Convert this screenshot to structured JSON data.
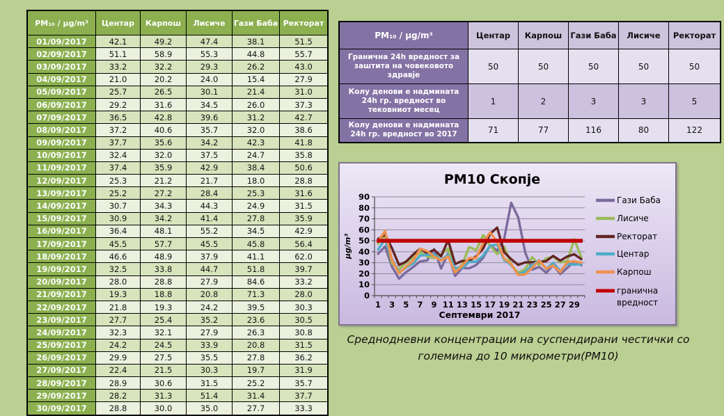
{
  "colors": {
    "page_bg": "#BACF92",
    "table_green": "#8CB050",
    "row_dark": "#D7E4BC",
    "row_light": "#EBF1DE",
    "purple_dark": "#8373A5",
    "purple_mid": "#CCC1DE",
    "purple_light": "#E5E0EF"
  },
  "left_table": {
    "corner_label": "PM₁₀ / µg/m³",
    "columns": [
      "Центар",
      "Карпош",
      "Лисиче",
      "Гази Баба",
      "Ректорат"
    ],
    "rows": [
      {
        "date": "01/09/2017",
        "values": [
          "42.1",
          "49.2",
          "47.4",
          "38.1",
          "51.5"
        ]
      },
      {
        "date": "02/09/2017",
        "values": [
          "51.1",
          "58.9",
          "55.3",
          "44.8",
          "55.7"
        ]
      },
      {
        "date": "03/09/2017",
        "values": [
          "33.2",
          "32.2",
          "29.3",
          "26.2",
          "43.0"
        ]
      },
      {
        "date": "04/09/2017",
        "values": [
          "21.0",
          "20.2",
          "24.0",
          "15.4",
          "27.9"
        ]
      },
      {
        "date": "05/09/2017",
        "values": [
          "25.7",
          "26.5",
          "30.1",
          "21.4",
          "31.0"
        ]
      },
      {
        "date": "06/09/2017",
        "values": [
          "29.2",
          "31.6",
          "34.5",
          "26.0",
          "37.3"
        ]
      },
      {
        "date": "07/09/2017",
        "values": [
          "36.5",
          "42.8",
          "39.6",
          "31.2",
          "42.7"
        ]
      },
      {
        "date": "08/09/2017",
        "values": [
          "37.2",
          "40.6",
          "35.7",
          "32.0",
          "38.6"
        ]
      },
      {
        "date": "09/09/2017",
        "values": [
          "37.7",
          "35.6",
          "34.2",
          "42.3",
          "41.8"
        ]
      },
      {
        "date": "10/09/2017",
        "values": [
          "32.4",
          "32.0",
          "37.5",
          "24.7",
          "35.8"
        ]
      },
      {
        "date": "11/09/2017",
        "values": [
          "37.4",
          "35.9",
          "42.9",
          "38.4",
          "50.6"
        ]
      },
      {
        "date": "12/09/2017",
        "values": [
          "25.3",
          "21.2",
          "21.7",
          "18.0",
          "28.8"
        ]
      },
      {
        "date": "13/09/2017",
        "values": [
          "25.2",
          "27.2",
          "28.4",
          "25.3",
          "31.6"
        ]
      },
      {
        "date": "14/09/2017",
        "values": [
          "30.7",
          "34.3",
          "44.3",
          "24.9",
          "31.5"
        ]
      },
      {
        "date": "15/09/2017",
        "values": [
          "30.9",
          "34.2",
          "41.4",
          "27.8",
          "35.9"
        ]
      },
      {
        "date": "16/09/2017",
        "values": [
          "36.4",
          "48.1",
          "55.2",
          "34.5",
          "42.9"
        ]
      },
      {
        "date": "17/09/2017",
        "values": [
          "45.5",
          "57.7",
          "45.5",
          "45.8",
          "56.4"
        ]
      },
      {
        "date": "18/09/2017",
        "values": [
          "46.6",
          "48.9",
          "37.9",
          "41.1",
          "62.0"
        ]
      },
      {
        "date": "19/09/2017",
        "values": [
          "32.5",
          "33.8",
          "44.7",
          "51.8",
          "39.7"
        ]
      },
      {
        "date": "20/09/2017",
        "values": [
          "28.0",
          "28.8",
          "27.9",
          "84.6",
          "33.2"
        ]
      },
      {
        "date": "21/09/2017",
        "values": [
          "19.3",
          "18.8",
          "20.8",
          "71.3",
          "28.0"
        ]
      },
      {
        "date": "22/09/2017",
        "values": [
          "21.8",
          "19.3",
          "24.2",
          "39.5",
          "30.3"
        ]
      },
      {
        "date": "23/09/2017",
        "values": [
          "27.7",
          "25.4",
          "35.2",
          "23.6",
          "30.5"
        ]
      },
      {
        "date": "24/09/2017",
        "values": [
          "32.3",
          "32.1",
          "27.9",
          "26.3",
          "30.8"
        ]
      },
      {
        "date": "25/09/2017",
        "values": [
          "24.2",
          "24.5",
          "33.9",
          "20.8",
          "31.5"
        ]
      },
      {
        "date": "26/09/2017",
        "values": [
          "29.9",
          "27.5",
          "35.5",
          "27.8",
          "36.2"
        ]
      },
      {
        "date": "27/09/2017",
        "values": [
          "22.4",
          "21.5",
          "30.3",
          "19.7",
          "31.9"
        ]
      },
      {
        "date": "28/09/2017",
        "values": [
          "28.9",
          "30.6",
          "31.5",
          "25.2",
          "35.7"
        ]
      },
      {
        "date": "29/09/2017",
        "values": [
          "28.2",
          "31.3",
          "51.4",
          "31.4",
          "37.7"
        ]
      },
      {
        "date": "30/09/2017",
        "values": [
          "28.8",
          "30.0",
          "35.0",
          "27.7",
          "33.3"
        ]
      }
    ]
  },
  "right_table": {
    "corner_label": "PM₁₀ / µg/m³",
    "columns": [
      "Центар",
      "Карпош",
      "Гази Баба",
      "Лисиче",
      "Ректорат"
    ],
    "rows": [
      {
        "label": "Гранична 24h вредност за заштита на човековото здравје",
        "values": [
          "50",
          "50",
          "50",
          "50",
          "50"
        ]
      },
      {
        "label": "Колу денови е надмината 24h гр. вредност во тековниот месец",
        "values": [
          "1",
          "2",
          "3",
          "3",
          "5"
        ]
      },
      {
        "label": "Колу денови е надмината 24h гр. вредност во 2017",
        "values": [
          "71",
          "77",
          "116",
          "80",
          "122"
        ]
      }
    ]
  },
  "chart_data": {
    "type": "line",
    "title": "PM10 Скопје",
    "ylabel": "µg/m³",
    "xlabel": "Септември 2017",
    "ylim": [
      0,
      90
    ],
    "ytick_step": 10,
    "grid": true,
    "legend_position": "right",
    "categories": [
      1,
      2,
      3,
      4,
      5,
      6,
      7,
      8,
      9,
      10,
      11,
      12,
      13,
      14,
      15,
      16,
      17,
      18,
      19,
      20,
      21,
      22,
      23,
      24,
      25,
      26,
      27,
      28,
      29,
      30
    ],
    "xtick_labels": [
      "1",
      "3",
      "5",
      "7",
      "9",
      "11",
      "13",
      "15",
      "17",
      "19",
      "21",
      "23",
      "25",
      "27",
      "29"
    ],
    "series": [
      {
        "name": "Гази Баба",
        "color": "#7C6A9C",
        "values": [
          38.1,
          44.8,
          26.2,
          15.4,
          21.4,
          26.0,
          31.2,
          32.0,
          42.3,
          24.7,
          38.4,
          18.0,
          25.3,
          24.9,
          27.8,
          34.5,
          45.8,
          41.1,
          51.8,
          84.6,
          71.3,
          39.5,
          23.6,
          26.3,
          20.8,
          27.8,
          19.7,
          25.2,
          31.4,
          27.7
        ]
      },
      {
        "name": "Лисиче",
        "color": "#9BBB59",
        "values": [
          47.4,
          55.3,
          29.3,
          24.0,
          30.1,
          34.5,
          39.6,
          35.7,
          34.2,
          37.5,
          42.9,
          21.7,
          28.4,
          44.3,
          41.4,
          55.2,
          45.5,
          37.9,
          44.7,
          27.9,
          20.8,
          24.2,
          35.2,
          27.9,
          33.9,
          35.5,
          30.3,
          31.5,
          51.4,
          35.0
        ]
      },
      {
        "name": "Ректорат",
        "color": "#632423",
        "values": [
          51.5,
          55.7,
          43.0,
          27.9,
          31.0,
          37.3,
          42.7,
          38.6,
          41.8,
          35.8,
          50.6,
          28.8,
          31.6,
          31.5,
          35.9,
          42.9,
          56.4,
          62.0,
          39.7,
          33.2,
          28.0,
          30.3,
          30.5,
          30.8,
          31.5,
          36.2,
          31.9,
          35.7,
          37.7,
          33.3
        ]
      },
      {
        "name": "Центар",
        "color": "#4BACC6",
        "values": [
          42.1,
          51.1,
          33.2,
          21.0,
          25.7,
          29.2,
          36.5,
          37.2,
          37.7,
          32.4,
          37.4,
          25.3,
          25.2,
          30.7,
          30.9,
          36.4,
          45.5,
          46.6,
          32.5,
          28.0,
          19.3,
          21.8,
          27.7,
          32.3,
          24.2,
          29.9,
          22.4,
          28.9,
          28.2,
          28.8
        ]
      },
      {
        "name": "Карпош",
        "color": "#F0914E",
        "values": [
          49.2,
          58.9,
          32.2,
          20.2,
          26.5,
          31.6,
          42.8,
          40.6,
          35.6,
          32.0,
          35.9,
          21.2,
          27.2,
          34.3,
          34.2,
          48.1,
          57.7,
          48.9,
          33.8,
          28.8,
          18.8,
          19.3,
          25.4,
          32.1,
          24.5,
          27.5,
          21.5,
          30.6,
          31.3,
          30.0
        ]
      }
    ],
    "limit_line": {
      "name": "гранична вредност",
      "name_lines": [
        "гранична",
        "вредност"
      ],
      "value": 50,
      "color": "#C00000"
    }
  },
  "caption": "Среднодневни концентрации на суспендирани честички со големина до 10 микрометри(РМ10)"
}
